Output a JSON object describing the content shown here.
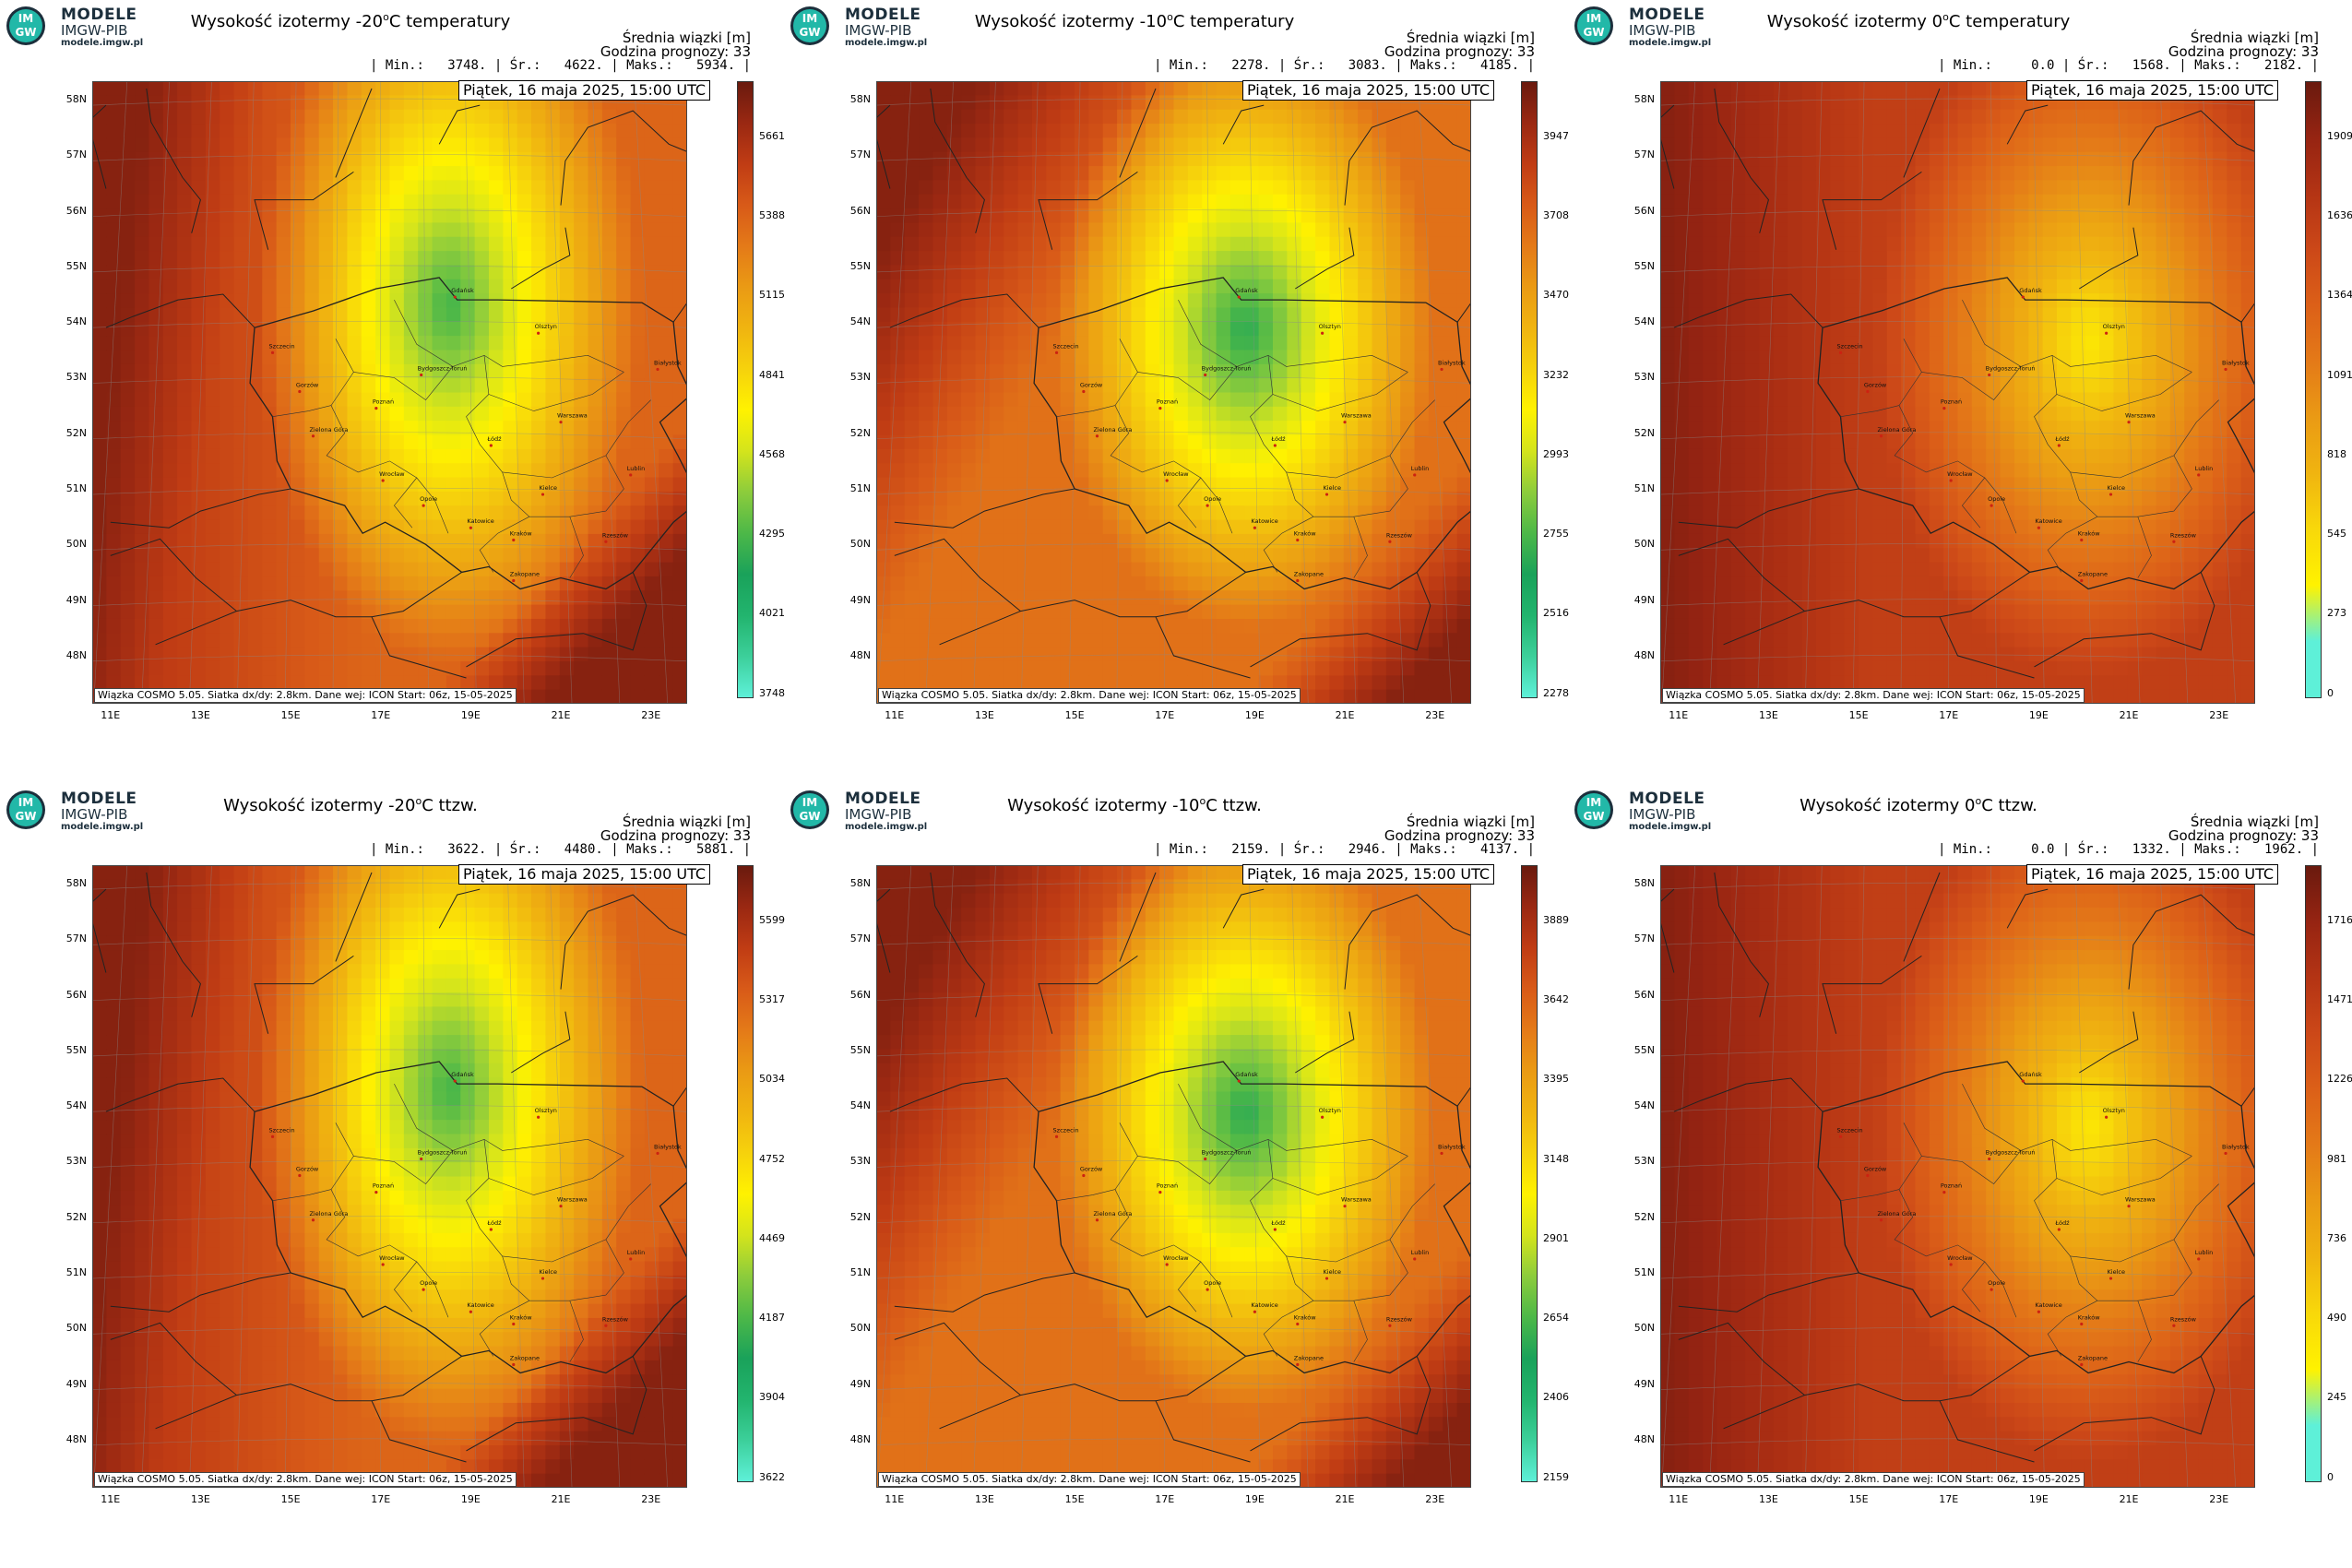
{
  "logo": {
    "line1": "MODELE",
    "line2": "IMGW-PIB",
    "line3": "modele.imgw.pl",
    "mark_top": "IM",
    "mark_bottom": "GW"
  },
  "common": {
    "mean_label": "Średnia wiązki [m]",
    "forecast_hour": "Godzina prognozy: 33",
    "date": "Piątek, 16 maja 2025, 15:00 UTC",
    "footnote": "Wiązka COSMO 5.05. Siatka dx/dy: 2.8km. Dane wej: ICON Start: 06z, 15-05-2025",
    "lat_ticks": [
      "58N",
      "57N",
      "56N",
      "55N",
      "54N",
      "53N",
      "52N",
      "51N",
      "50N",
      "49N",
      "48N"
    ],
    "lon_ticks": [
      "11E",
      "13E",
      "15E",
      "17E",
      "19E",
      "21E",
      "23E"
    ],
    "cities": [
      "Gdańsk",
      "Olsztyn",
      "Szczecin",
      "Bydgoszcz-Toruń",
      "Gorzów",
      "Poznań",
      "Warszawa",
      "Białystok",
      "Zielona Góra",
      "Łódź",
      "Lublin",
      "Wrocław",
      "Opole",
      "Kielce",
      "Katowice",
      "Kraków",
      "Rzeszów",
      "Zakopane"
    ]
  },
  "panels": [
    {
      "title_pre": "Wysokość izotermy ",
      "title_val": "-20",
      "title_post": "C temperatury",
      "stats": "| Min.:   3748. | Śr.:   4622. | Maks.:   5934. |",
      "field": "m20",
      "cbar_colors": "green",
      "cbar_labels": [
        "5661",
        "5388",
        "5115",
        "4841",
        "4568",
        "4295",
        "4021",
        "3748"
      ]
    },
    {
      "title_pre": "Wysokość izotermy ",
      "title_val": "-10",
      "title_post": "C temperatury",
      "stats": "| Min.:   2278. | Śr.:   3083. | Maks.:   4185. |",
      "field": "m10",
      "cbar_colors": "green",
      "cbar_labels": [
        "3947",
        "3708",
        "3470",
        "3232",
        "2993",
        "2755",
        "2516",
        "2278"
      ]
    },
    {
      "title_pre": "Wysokość izotermy ",
      "title_val": "0",
      "title_post": "C temperatury",
      "stats": "| Min.:     0.0 | Śr.:   1568. | Maks.:   2182. |",
      "field": "zero",
      "cbar_colors": "zero",
      "cbar_labels": [
        "1909",
        "1636",
        "1364",
        "1091",
        "818",
        "545",
        "273",
        "0"
      ]
    },
    {
      "title_pre": "Wysokość izotermy ",
      "title_val": "-20",
      "title_post": "C ttzw.",
      "stats": "| Min.:   3622. | Śr.:   4480. | Maks.:   5881. |",
      "field": "m20",
      "cbar_colors": "green",
      "cbar_labels": [
        "5599",
        "5317",
        "5034",
        "4752",
        "4469",
        "4187",
        "3904",
        "3622"
      ]
    },
    {
      "title_pre": "Wysokość izotermy ",
      "title_val": "-10",
      "title_post": "C ttzw.",
      "stats": "| Min.:   2159. | Śr.:   2946. | Maks.:   4137. |",
      "field": "m10",
      "cbar_colors": "green",
      "cbar_labels": [
        "3889",
        "3642",
        "3395",
        "3148",
        "2901",
        "2654",
        "2406",
        "2159"
      ]
    },
    {
      "title_pre": "Wysokość izotermy ",
      "title_val": "0",
      "title_post": "C ttzw.",
      "stats": "| Min.:     0.0 | Śr.:   1332. | Maks.:   1962. |",
      "field": "zero",
      "cbar_colors": "zero",
      "cbar_labels": [
        "1716",
        "1471",
        "1226",
        "981",
        "736",
        "490",
        "245",
        "0"
      ]
    }
  ],
  "colors": {
    "green_scale": [
      "#5ef0d8",
      "#3ccf9a",
      "#22b46e",
      "#1aa25a",
      "#4db848",
      "#8ccc3c",
      "#d4e41c",
      "#fff200",
      "#f6d20c",
      "#f0b410",
      "#ea9a14",
      "#e47a18",
      "#d85a18",
      "#c03c14",
      "#9a2812",
      "#6a1a0e"
    ],
    "zero_scale": [
      "#5ef0d8",
      "#5ef0d8",
      "#fff200",
      "#f8d80a",
      "#f0b410",
      "#ea9a14",
      "#e47a18",
      "#dc6018",
      "#cc4818",
      "#b43414",
      "#962412",
      "#6a1a0e"
    ]
  }
}
